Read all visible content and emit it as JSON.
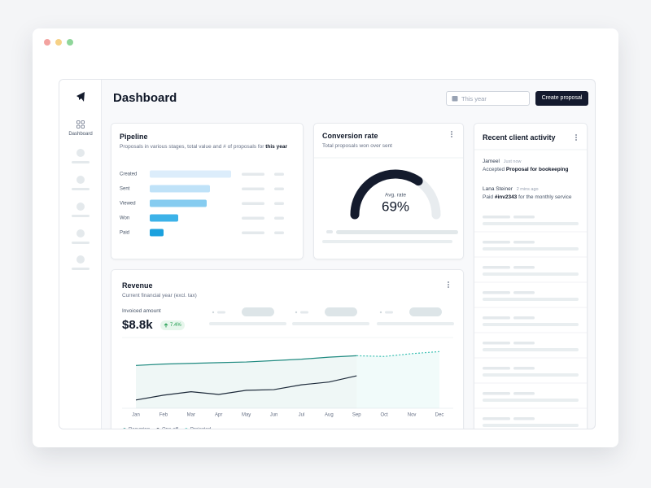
{
  "sidebar": {
    "nav": [
      "Dashboard"
    ]
  },
  "header": {
    "title": "Dashboard",
    "date_filter": "This year",
    "action": "Create proposal"
  },
  "activity": {
    "title": "Recent client activity",
    "items": [
      {
        "name": "Jameel",
        "time": "Just now",
        "verb": "Accepted",
        "object": "Proposal for bookeeping"
      },
      {
        "name": "Lana Steiner",
        "time": "2 mins ago",
        "verb": "Paid",
        "object": "#inv2343",
        "rest": "for the monthly service"
      }
    ]
  },
  "chart_data": [
    {
      "type": "bar",
      "orientation": "horizontal",
      "title": "Pipeline",
      "subtitle": "Proposals in various stages, total value and # of proposals for",
      "subtitle_emphasis": "this year",
      "categories": [
        "Created",
        "Sent",
        "Viewed",
        "Won",
        "Paid"
      ],
      "values": [
        100,
        74,
        70,
        35,
        17
      ],
      "colors": [
        "#dcedfb",
        "#bfe2f8",
        "#86ccf0",
        "#3cb2e8",
        "#1ba1de"
      ],
      "xlim": [
        0,
        100
      ]
    },
    {
      "type": "gauge",
      "title": "Conversion rate",
      "subtitle": "Total proposals won over sent",
      "label": "Avg. rate",
      "values": [
        69
      ],
      "value_labels": [
        "69%"
      ],
      "range": [
        0,
        100
      ],
      "color": "#141b2d",
      "track_color": "#e8ecef"
    },
    {
      "type": "line",
      "title": "Revenue",
      "subtitle": "Current financial year (excl. tax)",
      "metric_label": "Invoiced amount",
      "metric": "$8.8k",
      "change": "7.4%",
      "categories": [
        "Jan",
        "Feb",
        "Mar",
        "Apr",
        "May",
        "Jun",
        "Jul",
        "Aug",
        "Sep",
        "Oct",
        "Nov",
        "Dec"
      ],
      "series": [
        {
          "name": "Recurring",
          "color": "#1f8a80",
          "area": true,
          "dashed": false,
          "values": [
            62,
            64,
            65,
            66,
            67,
            69,
            71,
            74,
            76,
            null,
            null,
            null
          ]
        },
        {
          "name": "One-off",
          "color": "#1d2a3a",
          "area": false,
          "dashed": false,
          "values": [
            12,
            19,
            24,
            20,
            26,
            27,
            34,
            38,
            47,
            null,
            null,
            null
          ]
        },
        {
          "name": "Projected",
          "color": "#3cc0b3",
          "area": true,
          "dashed": true,
          "values": [
            null,
            null,
            null,
            null,
            null,
            null,
            null,
            null,
            76,
            75,
            79,
            82
          ]
        }
      ],
      "ylim": [
        0,
        100
      ],
      "legend": "bottom-left"
    }
  ]
}
